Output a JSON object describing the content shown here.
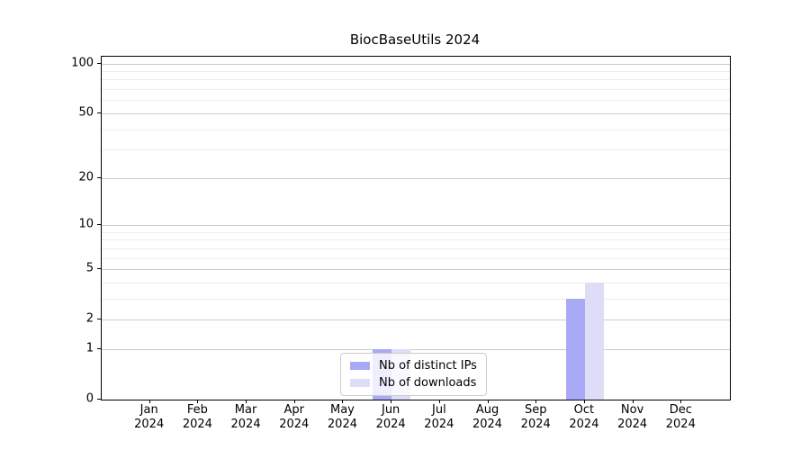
{
  "title": "BiocBaseUtils 2024",
  "colors": {
    "distinct_ips_bar": "#a9a9f5",
    "downloads_bar": "#ddddf8",
    "major_grid": "#cccccc",
    "minor_grid": "#ededed",
    "spine": "#000000",
    "legend_border": "#cccccc",
    "text": "#000000"
  },
  "chart_data": {
    "type": "bar",
    "title": "BiocBaseUtils 2024",
    "categories": [
      "Jan",
      "Feb",
      "Mar",
      "Apr",
      "May",
      "Jun",
      "Jul",
      "Aug",
      "Sep",
      "Oct",
      "Nov",
      "Dec"
    ],
    "year": "2024",
    "series": [
      {
        "name": "Nb of distinct IPs",
        "color": "#a9a9f5",
        "values": [
          0,
          0,
          0,
          0,
          0,
          1,
          0,
          0,
          0,
          3,
          0,
          0
        ]
      },
      {
        "name": "Nb of downloads",
        "color": "#ddddf8",
        "values": [
          0,
          0,
          0,
          0,
          0,
          1,
          0,
          0,
          0,
          4,
          0,
          0
        ]
      }
    ],
    "yscale": "log1p",
    "ylim": [
      0,
      110
    ],
    "yticks": [
      0,
      1,
      2,
      5,
      10,
      20,
      50,
      100
    ],
    "minor_yticks": [
      3,
      4,
      6,
      7,
      8,
      9,
      30,
      40,
      60,
      70,
      80,
      90
    ],
    "xlabel": "",
    "ylabel": "",
    "grid": "horizontal",
    "legend_position": "inside-bottom-center"
  },
  "legend": {
    "items": [
      {
        "label": "Nb of distinct IPs",
        "color": "#a9a9f5"
      },
      {
        "label": "Nb of downloads",
        "color": "#ddddf8"
      }
    ]
  }
}
